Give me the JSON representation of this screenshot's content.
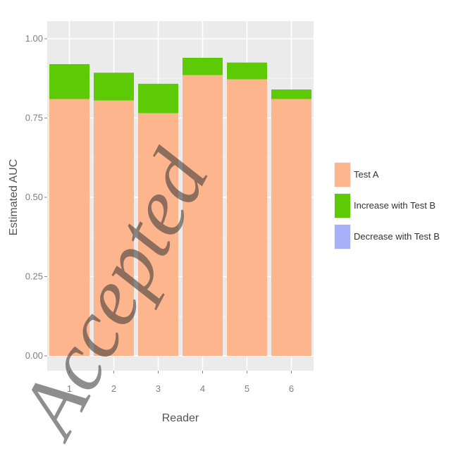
{
  "chart_data": {
    "type": "bar",
    "stacked": true,
    "xlabel": "Reader",
    "ylabel": "Estimated AUC",
    "categories": [
      "1",
      "2",
      "3",
      "4",
      "5",
      "6"
    ],
    "ylim": [
      0,
      1.0
    ],
    "yticks": [
      0.0,
      0.25,
      0.5,
      0.75,
      1.0
    ],
    "ytick_labels": [
      "0.00",
      "0.25",
      "0.50",
      "0.75",
      "1.00"
    ],
    "test_a": [
      0.81,
      0.805,
      0.765,
      0.885,
      0.872,
      0.81
    ],
    "test_b": [
      0.92,
      0.893,
      0.858,
      0.94,
      0.925,
      0.84
    ],
    "series": [
      {
        "name": "Test A",
        "color": "#fdb58e"
      },
      {
        "name": "Increase with Test B",
        "color": "#5ccb06"
      },
      {
        "name": "Decrease with Test B",
        "color": "#a6b0f7"
      }
    ],
    "grid": true,
    "legend_position": "right"
  },
  "watermark": "Accepted"
}
